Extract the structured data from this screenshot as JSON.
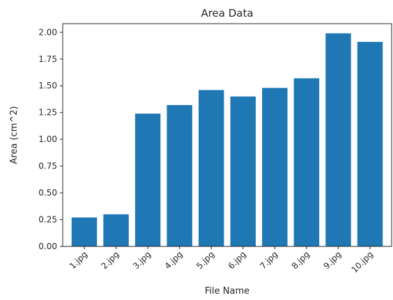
{
  "chart_data": {
    "type": "bar",
    "title": "Area Data",
    "xlabel": "File Name",
    "ylabel": "Area (cm^2)",
    "categories": [
      "1.jpg",
      "2.jpg",
      "3.jpg",
      "4.jpg",
      "5.jpg",
      "6.jpg",
      "7.jpg",
      "8.jpg",
      "9.jpg",
      "10.jpg"
    ],
    "values": [
      0.27,
      0.3,
      1.24,
      1.32,
      1.46,
      1.4,
      1.48,
      1.57,
      1.99,
      1.91
    ],
    "ylim": [
      0,
      2.08
    ],
    "yticks": [
      "0.00",
      "0.25",
      "0.50",
      "0.75",
      "1.00",
      "1.25",
      "1.50",
      "1.75",
      "2.00"
    ],
    "bar_color": "#1f77b4",
    "grid": false,
    "legend": "none"
  }
}
